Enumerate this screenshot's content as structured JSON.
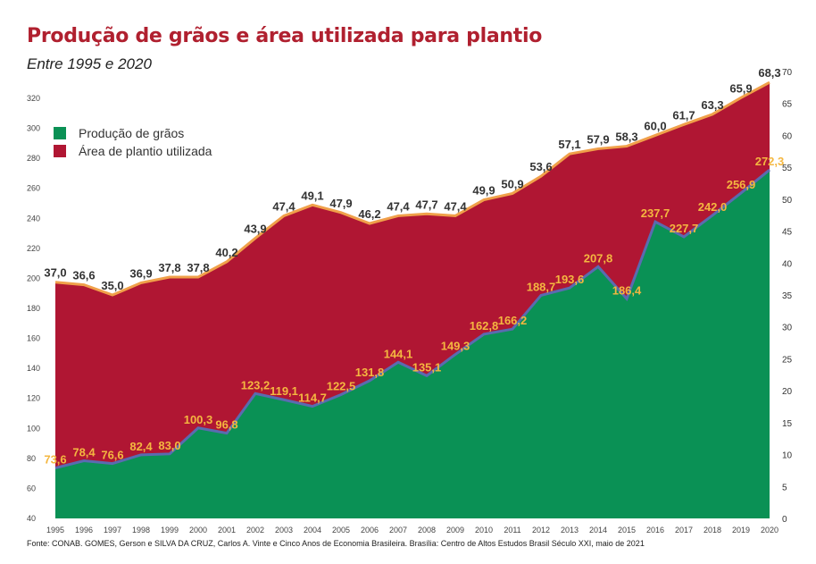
{
  "title": "Produção de grãos e área utilizada para plantio",
  "subtitle": "Entre 1995 e 2020",
  "source": "Fonte: CONAB.  GOMES, Gerson e SILVA DA CRUZ, Carlos A. Vinte e Cinco Anos de Economia Brasileira. Brasília: Centro de Altos Estudos Brasil Século XXI, maio de 2021",
  "colors": {
    "grain": "#0a9155",
    "area": "#b01633",
    "area_line": "#f0a04a",
    "grain_line": "#5a6bb0",
    "title": "#b0202f",
    "grain_label": "#f4b740"
  },
  "chart_data": {
    "type": "area",
    "x": [
      "1995",
      "1996",
      "1997",
      "1998",
      "1999",
      "2000",
      "2001",
      "2002",
      "2003",
      "2004",
      "2005",
      "2006",
      "2007",
      "2008",
      "2009",
      "2010",
      "2011",
      "2012",
      "2013",
      "2014",
      "2015",
      "2016",
      "2017",
      "2018",
      "2019",
      "2020"
    ],
    "series": [
      {
        "name": "Produção de grãos",
        "axis": "left",
        "values": [
          73.6,
          78.4,
          76.6,
          82.4,
          83.0,
          100.3,
          96.8,
          123.2,
          119.1,
          114.7,
          122.5,
          131.8,
          144.1,
          135.1,
          149.3,
          162.8,
          166.2,
          188.7,
          193.6,
          207.8,
          186.4,
          237.7,
          227.7,
          242.0,
          256.9,
          272.3
        ],
        "labels": [
          "73,6",
          "78,4",
          "76,6",
          "82,4",
          "83,0",
          "100,3",
          "96,8",
          "123,2",
          "119,1",
          "114,7",
          "122,5",
          "131,8",
          "144,1",
          "135,1",
          "149,3",
          "162,8",
          "166,2",
          "188,7",
          "193,6",
          "207,8",
          "186,4",
          "237,7",
          "227,7",
          "242,0",
          "256,9",
          "272,3"
        ]
      },
      {
        "name": "Área de plantio utilizada",
        "axis": "right",
        "values": [
          37.0,
          36.6,
          35.0,
          36.9,
          37.8,
          37.8,
          40.2,
          43.9,
          47.4,
          49.1,
          47.9,
          46.2,
          47.4,
          47.7,
          47.4,
          49.9,
          50.9,
          53.6,
          57.1,
          57.9,
          58.3,
          60.0,
          61.7,
          63.3,
          65.9,
          68.3
        ],
        "labels": [
          "37,0",
          "36,6",
          "35,0",
          "36,9",
          "37,8",
          "37,8",
          "40,2",
          "43,9",
          "47,4",
          "49,1",
          "47,9",
          "46,2",
          "47,4",
          "47,7",
          "47,4",
          "49,9",
          "50,9",
          "53,6",
          "57,1",
          "57,9",
          "58,3",
          "60,0",
          "61,7",
          "63,3",
          "65,9",
          "68,3"
        ]
      }
    ],
    "y_left": {
      "ticks": [
        "40",
        "60",
        "80",
        "100",
        "120",
        "140",
        "160",
        "180",
        "200",
        "220",
        "240",
        "260",
        "280",
        "300",
        "320"
      ],
      "ylim": [
        40,
        330
      ]
    },
    "y_right": {
      "ticks": [
        "0",
        "5",
        "10",
        "15",
        "20",
        "25",
        "30",
        "35",
        "40",
        "45",
        "50",
        "55",
        "60",
        "65",
        "70"
      ],
      "ylim": [
        0,
        70
      ]
    },
    "legend_position": "top-left"
  }
}
